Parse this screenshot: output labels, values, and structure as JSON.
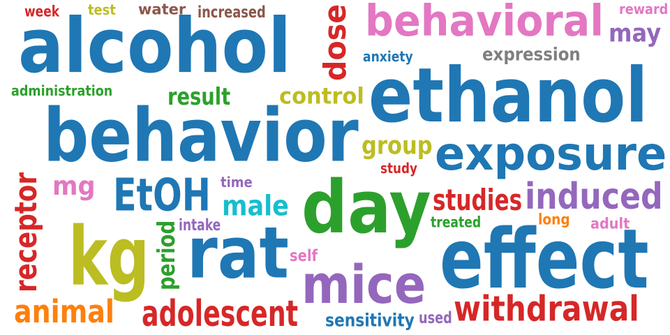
{
  "palette": {
    "blue": "#1f77b4",
    "pink": "#e377c2",
    "purple": "#9467bd",
    "green": "#2ca02c",
    "red": "#d62728",
    "olive": "#bcbd22",
    "gray": "#7f7f7f",
    "brown": "#8c564b",
    "orange": "#ff7f0e",
    "cyan": "#17becf"
  },
  "words": [
    {
      "text": "week",
      "color": "red"
    },
    {
      "text": "test",
      "color": "olive"
    },
    {
      "text": "water",
      "color": "brown"
    },
    {
      "text": "increased",
      "color": "brown"
    },
    {
      "text": "dose",
      "color": "red",
      "vertical": true
    },
    {
      "text": "behavioral",
      "color": "pink"
    },
    {
      "text": "reward",
      "color": "pink"
    },
    {
      "text": "may",
      "color": "purple"
    },
    {
      "text": "alcohol",
      "color": "blue"
    },
    {
      "text": "anxiety",
      "color": "blue"
    },
    {
      "text": "expression",
      "color": "gray"
    },
    {
      "text": "administration",
      "color": "green"
    },
    {
      "text": "result",
      "color": "green"
    },
    {
      "text": "control",
      "color": "olive"
    },
    {
      "text": "ethanol",
      "color": "blue"
    },
    {
      "text": "behavior",
      "color": "blue"
    },
    {
      "text": "group",
      "color": "olive"
    },
    {
      "text": "exposure",
      "color": "blue"
    },
    {
      "text": "study",
      "color": "red"
    },
    {
      "text": "receptor",
      "color": "red",
      "vertical": true
    },
    {
      "text": "mg",
      "color": "pink"
    },
    {
      "text": "EtOH",
      "color": "blue"
    },
    {
      "text": "time",
      "color": "purple"
    },
    {
      "text": "male",
      "color": "cyan"
    },
    {
      "text": "day",
      "color": "green"
    },
    {
      "text": "studies",
      "color": "red"
    },
    {
      "text": "induced",
      "color": "purple"
    },
    {
      "text": "kg",
      "color": "olive"
    },
    {
      "text": "period",
      "color": "green",
      "vertical": true
    },
    {
      "text": "intake",
      "color": "purple"
    },
    {
      "text": "rat",
      "color": "blue"
    },
    {
      "text": "treated",
      "color": "green"
    },
    {
      "text": "long",
      "color": "orange"
    },
    {
      "text": "adult",
      "color": "pink"
    },
    {
      "text": "effect",
      "color": "blue"
    },
    {
      "text": "self",
      "color": "pink"
    },
    {
      "text": "mice",
      "color": "purple"
    },
    {
      "text": "animal",
      "color": "orange"
    },
    {
      "text": "adolescent",
      "color": "red"
    },
    {
      "text": "withdrawal",
      "color": "red"
    },
    {
      "text": "sensitivity",
      "color": "blue"
    },
    {
      "text": "used",
      "color": "purple"
    }
  ]
}
